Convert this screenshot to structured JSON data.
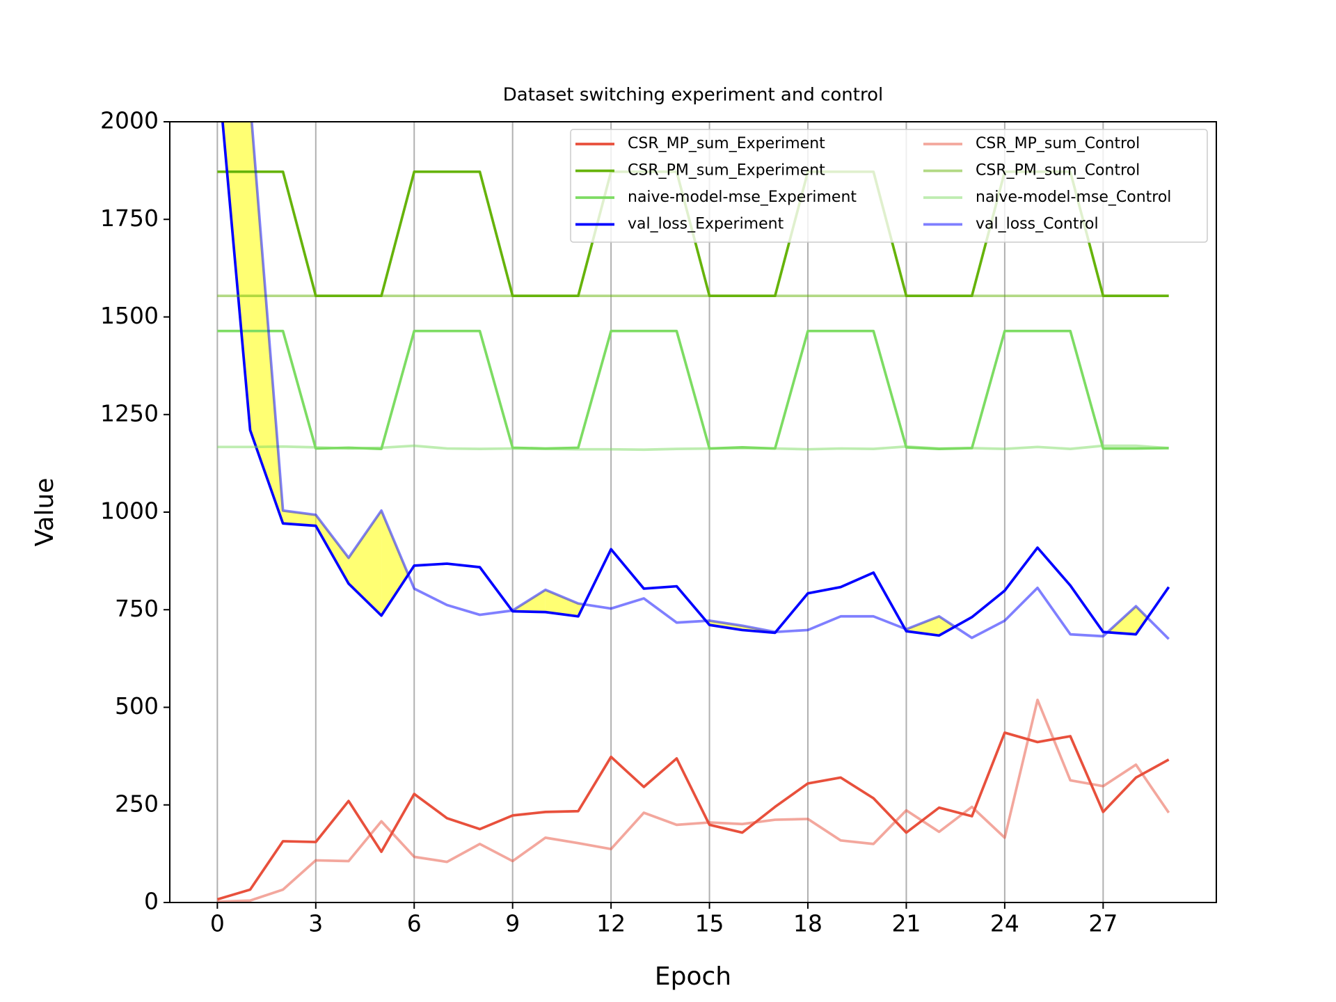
{
  "chart_data": {
    "type": "line",
    "title": "Dataset switching experiment and control",
    "x_label": "Epoch",
    "y_label": "Value",
    "x": [
      0,
      1,
      2,
      3,
      4,
      5,
      6,
      7,
      8,
      9,
      10,
      11,
      12,
      13,
      14,
      15,
      16,
      17,
      18,
      19,
      20,
      21,
      22,
      23,
      24,
      25,
      26,
      27,
      28,
      29
    ],
    "xlim": [
      -1.45,
      30.45
    ],
    "xticks": [
      0,
      3,
      6,
      9,
      12,
      15,
      18,
      21,
      24,
      27
    ],
    "ylim": [
      0,
      2000
    ],
    "yticks": [
      0,
      250,
      500,
      750,
      1000,
      1250,
      1500,
      1750,
      2000
    ],
    "grid": "x",
    "legend": {
      "corner": "upper right",
      "columns": 2
    },
    "fill": {
      "color": "#ffff00",
      "alpha": 0.55,
      "upper": 7,
      "lower": 3
    },
    "series": [
      {
        "name": "CSR_MP_sum_Experiment",
        "color": "#e8503c",
        "alpha": 1,
        "values": [
          8,
          33,
          157,
          155,
          260,
          130,
          278,
          216,
          188,
          223,
          232,
          234,
          373,
          296,
          369,
          199,
          179,
          245,
          305,
          320,
          267,
          179,
          243,
          221,
          435,
          411,
          426,
          232,
          320,
          366
        ]
      },
      {
        "name": "CSR_PM_sum_Experiment",
        "color": "#66b30a",
        "alpha": 1,
        "values": [
          1872,
          1872,
          1872,
          1554,
          1554,
          1554,
          1872,
          1872,
          1872,
          1554,
          1554,
          1554,
          1872,
          1872,
          1872,
          1554,
          1554,
          1554,
          1872,
          1872,
          1872,
          1554,
          1554,
          1554,
          1872,
          1872,
          1872,
          1554,
          1554,
          1554
        ]
      },
      {
        "name": "naive-model-mse_Experiment",
        "color": "#7ddc63",
        "alpha": 1,
        "values": [
          1464,
          1464,
          1464,
          1163,
          1165,
          1162,
          1464,
          1464,
          1464,
          1165,
          1163,
          1165,
          1464,
          1464,
          1464,
          1163,
          1166,
          1163,
          1464,
          1464,
          1464,
          1166,
          1162,
          1164,
          1464,
          1464,
          1464,
          1163,
          1163,
          1164
        ]
      },
      {
        "name": "val_loss_Experiment",
        "color": "#0000ff",
        "alpha": 1,
        "values": [
          2150,
          1210,
          971,
          965,
          817,
          735,
          863,
          868,
          859,
          746,
          744,
          733,
          905,
          804,
          810,
          711,
          698,
          691,
          792,
          808,
          845,
          695,
          684,
          731,
          799,
          909,
          812,
          693,
          687,
          808
        ]
      },
      {
        "name": "CSR_MP_sum_Control",
        "color": "#e8503c",
        "alpha": 0.5,
        "values": [
          2,
          5,
          33,
          108,
          106,
          208,
          117,
          104,
          150,
          106,
          166,
          152,
          137,
          230,
          199,
          205,
          201,
          212,
          214,
          159,
          150,
          236,
          181,
          245,
          166,
          519,
          313,
          298,
          353,
          230
        ]
      },
      {
        "name": "CSR_PM_sum_Control",
        "color": "#66b30a",
        "alpha": 0.5,
        "values": [
          1554,
          1554,
          1554,
          1554,
          1554,
          1554,
          1554,
          1554,
          1554,
          1554,
          1554,
          1554,
          1554,
          1554,
          1554,
          1554,
          1554,
          1554,
          1554,
          1554,
          1554,
          1554,
          1554,
          1554,
          1554,
          1554,
          1554,
          1554,
          1554,
          1554
        ]
      },
      {
        "name": "naive-model-mse_Control",
        "color": "#7ddc63",
        "alpha": 0.5,
        "values": [
          1167,
          1167,
          1168,
          1166,
          1163,
          1165,
          1170,
          1163,
          1162,
          1163,
          1162,
          1161,
          1161,
          1160,
          1162,
          1163,
          1164,
          1163,
          1161,
          1163,
          1162,
          1168,
          1163,
          1164,
          1162,
          1167,
          1162,
          1170,
          1170,
          1164
        ]
      },
      {
        "name": "val_loss_Control",
        "color": "#0000ff",
        "alpha": 0.5,
        "values": [
          2600,
          2050,
          1004,
          993,
          883,
          1004,
          804,
          762,
          737,
          748,
          801,
          766,
          753,
          779,
          717,
          722,
          709,
          693,
          698,
          733,
          733,
          700,
          733,
          678,
          722,
          806,
          687,
          682,
          759,
          675
        ]
      }
    ]
  }
}
